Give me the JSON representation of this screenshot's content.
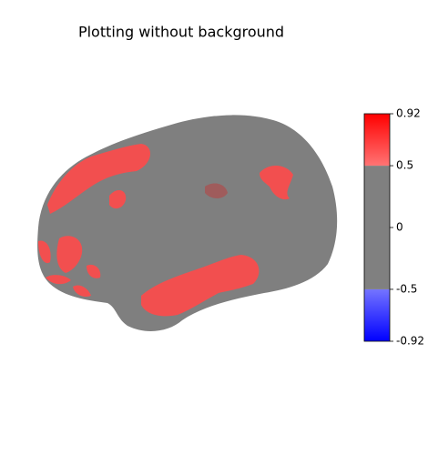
{
  "chart_data": {
    "type": "surface",
    "title": "Plotting without background",
    "clim": [
      -0.92,
      0.92
    ],
    "threshold": 0.5,
    "colorbar_ticks": [
      -0.92,
      -0.5,
      0,
      0.5,
      0.92
    ],
    "colors": {
      "low": "#0000ff",
      "mid": "#808080",
      "high": "#ff0000"
    }
  }
}
